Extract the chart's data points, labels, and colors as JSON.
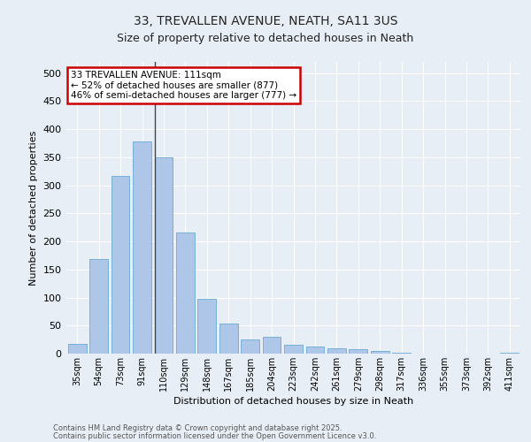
{
  "title_line1": "33, TREVALLEN AVENUE, NEATH, SA11 3US",
  "title_line2": "Size of property relative to detached houses in Neath",
  "xlabel": "Distribution of detached houses by size in Neath",
  "ylabel": "Number of detached properties",
  "categories": [
    "35sqm",
    "54sqm",
    "73sqm",
    "91sqm",
    "110sqm",
    "129sqm",
    "148sqm",
    "167sqm",
    "185sqm",
    "204sqm",
    "223sqm",
    "242sqm",
    "261sqm",
    "279sqm",
    "298sqm",
    "317sqm",
    "336sqm",
    "355sqm",
    "373sqm",
    "392sqm",
    "411sqm"
  ],
  "values": [
    18,
    168,
    317,
    378,
    350,
    216,
    98,
    54,
    25,
    30,
    15,
    13,
    9,
    8,
    5,
    1,
    0,
    0,
    0,
    0,
    2
  ],
  "bar_color": "#aec6e8",
  "bar_edge_color": "#6aaad4",
  "highlight_bar_index": 4,
  "highlight_line_color": "#444444",
  "annotation_text": "33 TREVALLEN AVENUE: 111sqm\n← 52% of detached houses are smaller (877)\n46% of semi-detached houses are larger (777) →",
  "annotation_box_color": "#ffffff",
  "annotation_box_edge_color": "#cc0000",
  "ylim": [
    0,
    520
  ],
  "yticks": [
    0,
    50,
    100,
    150,
    200,
    250,
    300,
    350,
    400,
    450,
    500
  ],
  "bg_color": "#e8eef5",
  "grid_color": "#ffffff",
  "footer_line1": "Contains HM Land Registry data © Crown copyright and database right 2025.",
  "footer_line2": "Contains public sector information licensed under the Open Government Licence v3.0."
}
